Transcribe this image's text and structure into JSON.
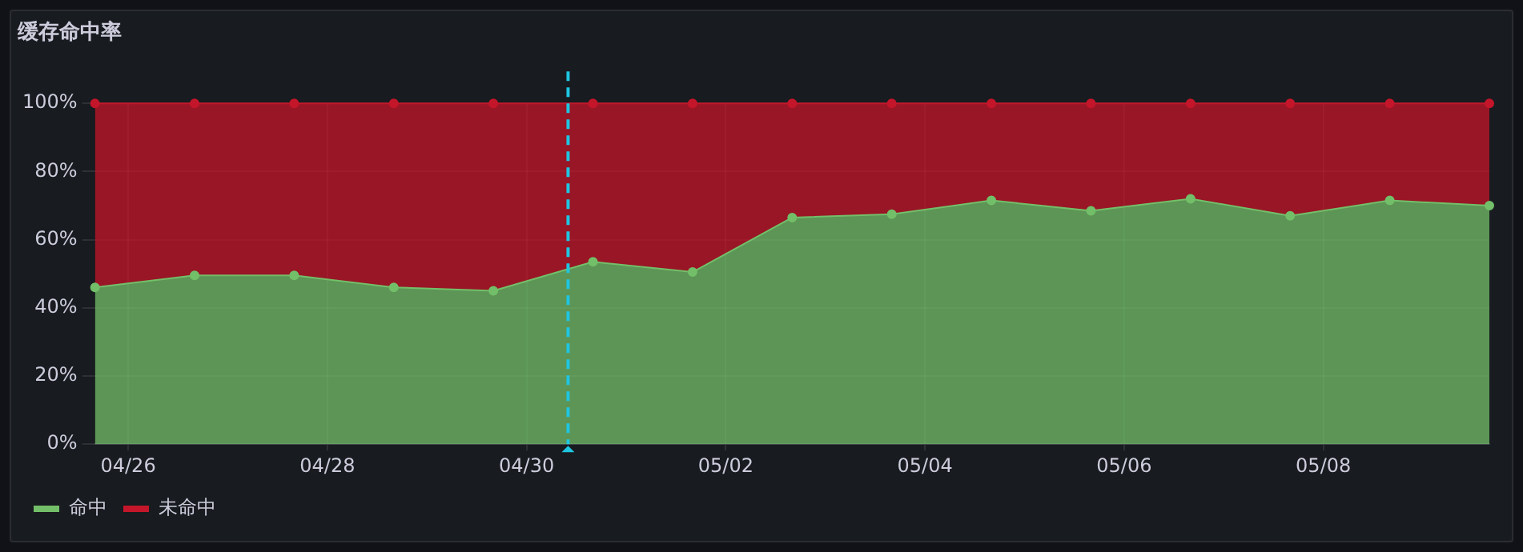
{
  "chart_data": {
    "type": "area",
    "title": "缓存命中率",
    "stacked": true,
    "x": [
      "--04-25T16:00",
      "--04-26T16:00",
      "--04-27T16:00",
      "--04-28T16:00",
      "--04-29T16:00",
      "--04-30T16:00",
      "--05-01T16:00",
      "--05-02T16:00",
      "--05-03T16:00",
      "--05-04T16:00",
      "--05-05T16:00",
      "--05-06T16:00",
      "--05-07T16:00",
      "--05-08T16:00",
      "--05-09T16:00"
    ],
    "series": [
      {
        "name": "命中",
        "color": "#73bf69",
        "values": [
          46,
          49.5,
          49.5,
          46,
          45,
          53.5,
          50.5,
          66.5,
          67.5,
          71.5,
          68.5,
          72,
          67,
          71.5,
          70
        ]
      },
      {
        "name": "未命中",
        "color": "#c4162a",
        "values": [
          54,
          50.5,
          50.5,
          54,
          55,
          46.5,
          49.5,
          33.5,
          32.5,
          28.5,
          31.5,
          28,
          33,
          28.5,
          30
        ]
      }
    ],
    "xlim": [
      "--04-25T16:00",
      "--05-09T16:00"
    ],
    "xticks": [
      {
        "value": "--04-26",
        "label": "04/26"
      },
      {
        "value": "--04-28",
        "label": "04/28"
      },
      {
        "value": "--04-30",
        "label": "04/30"
      },
      {
        "value": "--05-02",
        "label": "05/02"
      },
      {
        "value": "--05-04",
        "label": "05/04"
      },
      {
        "value": "--05-06",
        "label": "05/06"
      },
      {
        "value": "--05-08",
        "label": "05/08"
      }
    ],
    "ylim": [
      0,
      100
    ],
    "yticks": [
      {
        "value": 0,
        "label": "0%"
      },
      {
        "value": 20,
        "label": "20%"
      },
      {
        "value": 40,
        "label": "40%"
      },
      {
        "value": 60,
        "label": "60%"
      },
      {
        "value": 80,
        "label": "80%"
      },
      {
        "value": 100,
        "label": "100%"
      }
    ],
    "ref_lines": [
      {
        "axis": "x",
        "value": "--04-30T10:00",
        "color": "#1fc5e0",
        "line_style": "dashed"
      }
    ],
    "grid": true,
    "legend": "bottom left",
    "marker": "circle",
    "line_style": "solid"
  }
}
